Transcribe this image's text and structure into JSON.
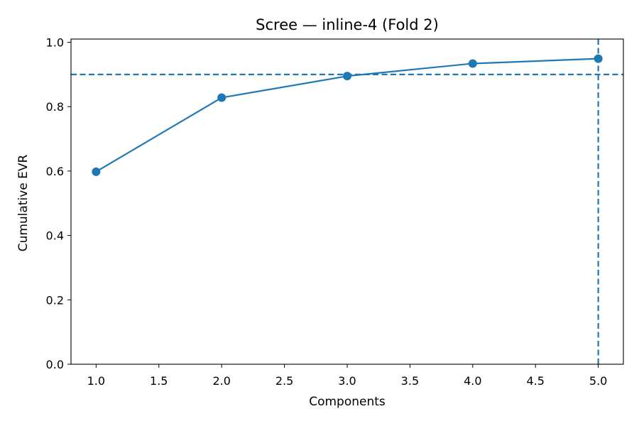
{
  "chart_data": {
    "type": "line",
    "title": "Scree — inline-4 (Fold 2)",
    "xlabel": "Components",
    "ylabel": "Cumulative EVR",
    "xlim": [
      0.8,
      5.2
    ],
    "ylim": [
      0.0,
      1.01
    ],
    "x_ticks": [
      "1.0",
      "1.5",
      "2.0",
      "2.5",
      "3.0",
      "3.5",
      "4.0",
      "4.5",
      "5.0"
    ],
    "y_ticks": [
      "0.0",
      "0.2",
      "0.4",
      "0.6",
      "0.8",
      "1.0"
    ],
    "grid": false,
    "series": [
      {
        "x": [
          1,
          2,
          3,
          4,
          5
        ],
        "values": [
          0.598,
          0.828,
          0.895,
          0.934,
          0.949
        ],
        "color": "#1f77b4",
        "marker": "circle"
      }
    ],
    "reference_lines": [
      {
        "orientation": "horizontal",
        "value": 0.9,
        "style": "dashed",
        "color": "#1f77b4"
      },
      {
        "orientation": "vertical",
        "value": 5.0,
        "style": "dashed",
        "color": "#1f77b4"
      }
    ]
  }
}
